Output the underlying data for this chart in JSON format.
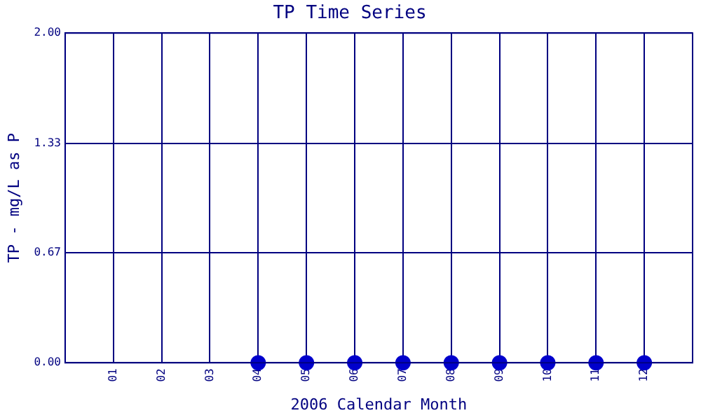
{
  "chart_data": {
    "type": "scatter",
    "title": "TP Time Series",
    "xlabel": "2006 Calendar Month",
    "ylabel": "TP - mg/L as P",
    "categories": [
      "01",
      "02",
      "03",
      "04",
      "05",
      "06",
      "07",
      "08",
      "09",
      "10",
      "11",
      "12"
    ],
    "series": [
      {
        "color": "#0000cc",
        "values": [
          null,
          null,
          null,
          0,
          0,
          0,
          0,
          0,
          0,
          0,
          0,
          0
        ]
      }
    ],
    "ylim": [
      0,
      2
    ],
    "yticks": [
      {
        "value": 0,
        "label": "0.00"
      },
      {
        "value": 0.67,
        "label": "0.67"
      },
      {
        "value": 1.33,
        "label": "1.33"
      },
      {
        "value": 2,
        "label": "2.00"
      }
    ],
    "grid": true,
    "legend": false,
    "marker": "circle"
  }
}
